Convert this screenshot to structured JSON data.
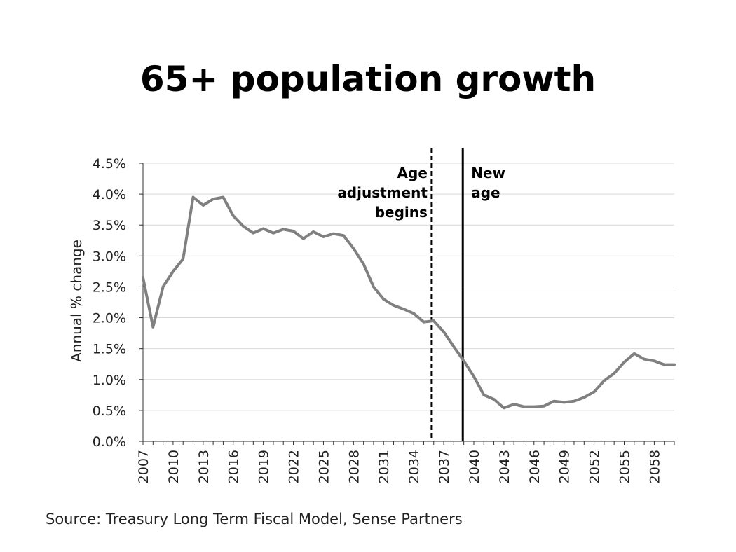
{
  "chart_data": {
    "type": "line",
    "title": "65+ population growth",
    "xlabel": "",
    "ylabel": "Annual % change",
    "ylim": [
      0,
      4.5
    ],
    "yticks": [
      "0.0%",
      "0.5%",
      "1.0%",
      "1.5%",
      "2.0%",
      "2.5%",
      "3.0%",
      "3.5%",
      "4.0%",
      "4.5%"
    ],
    "ytick_values": [
      0,
      0.5,
      1.0,
      1.5,
      2.0,
      2.5,
      3.0,
      3.5,
      4.0,
      4.5
    ],
    "xlim": [
      2007,
      2060
    ],
    "xticks": [
      2007,
      2010,
      2013,
      2016,
      2019,
      2022,
      2025,
      2028,
      2031,
      2034,
      2037,
      2040,
      2043,
      2046,
      2049,
      2052,
      2055,
      2058
    ],
    "grid": true,
    "series": [
      {
        "name": "65+ population growth",
        "color": "#808080",
        "x": [
          2007,
          2008,
          2009,
          2010,
          2011,
          2012,
          2013,
          2014,
          2015,
          2016,
          2017,
          2018,
          2019,
          2020,
          2021,
          2022,
          2023,
          2024,
          2025,
          2026,
          2027,
          2028,
          2029,
          2030,
          2031,
          2032,
          2033,
          2034,
          2035,
          2036,
          2037,
          2038,
          2039,
          2040,
          2041,
          2042,
          2043,
          2044,
          2045,
          2046,
          2047,
          2048,
          2049,
          2050,
          2051,
          2052,
          2053,
          2054,
          2055,
          2056,
          2057,
          2058,
          2059,
          2060
        ],
        "values": [
          2.65,
          1.85,
          2.5,
          2.75,
          2.95,
          3.95,
          3.82,
          3.92,
          3.95,
          3.65,
          3.48,
          3.37,
          3.44,
          3.37,
          3.43,
          3.4,
          3.28,
          3.39,
          3.31,
          3.36,
          3.33,
          3.12,
          2.87,
          2.5,
          2.3,
          2.2,
          2.14,
          2.07,
          1.93,
          1.95,
          1.77,
          1.53,
          1.3,
          1.05,
          0.75,
          0.68,
          0.54,
          0.6,
          0.56,
          0.56,
          0.57,
          0.65,
          0.63,
          0.65,
          0.71,
          0.8,
          0.98,
          1.1,
          1.28,
          1.42,
          1.33,
          1.3,
          1.24,
          1.24
        ]
      }
    ],
    "vlines": [
      {
        "x": 2035.8,
        "style": "dashed",
        "label": [
          "Age",
          "adjustment",
          "begins"
        ],
        "label_side": "left"
      },
      {
        "x": 2038.9,
        "style": "solid",
        "label": [
          "New",
          "age"
        ],
        "label_side": "right"
      }
    ],
    "source": "Source: Treasury Long Term Fiscal Model, Sense Partners"
  }
}
